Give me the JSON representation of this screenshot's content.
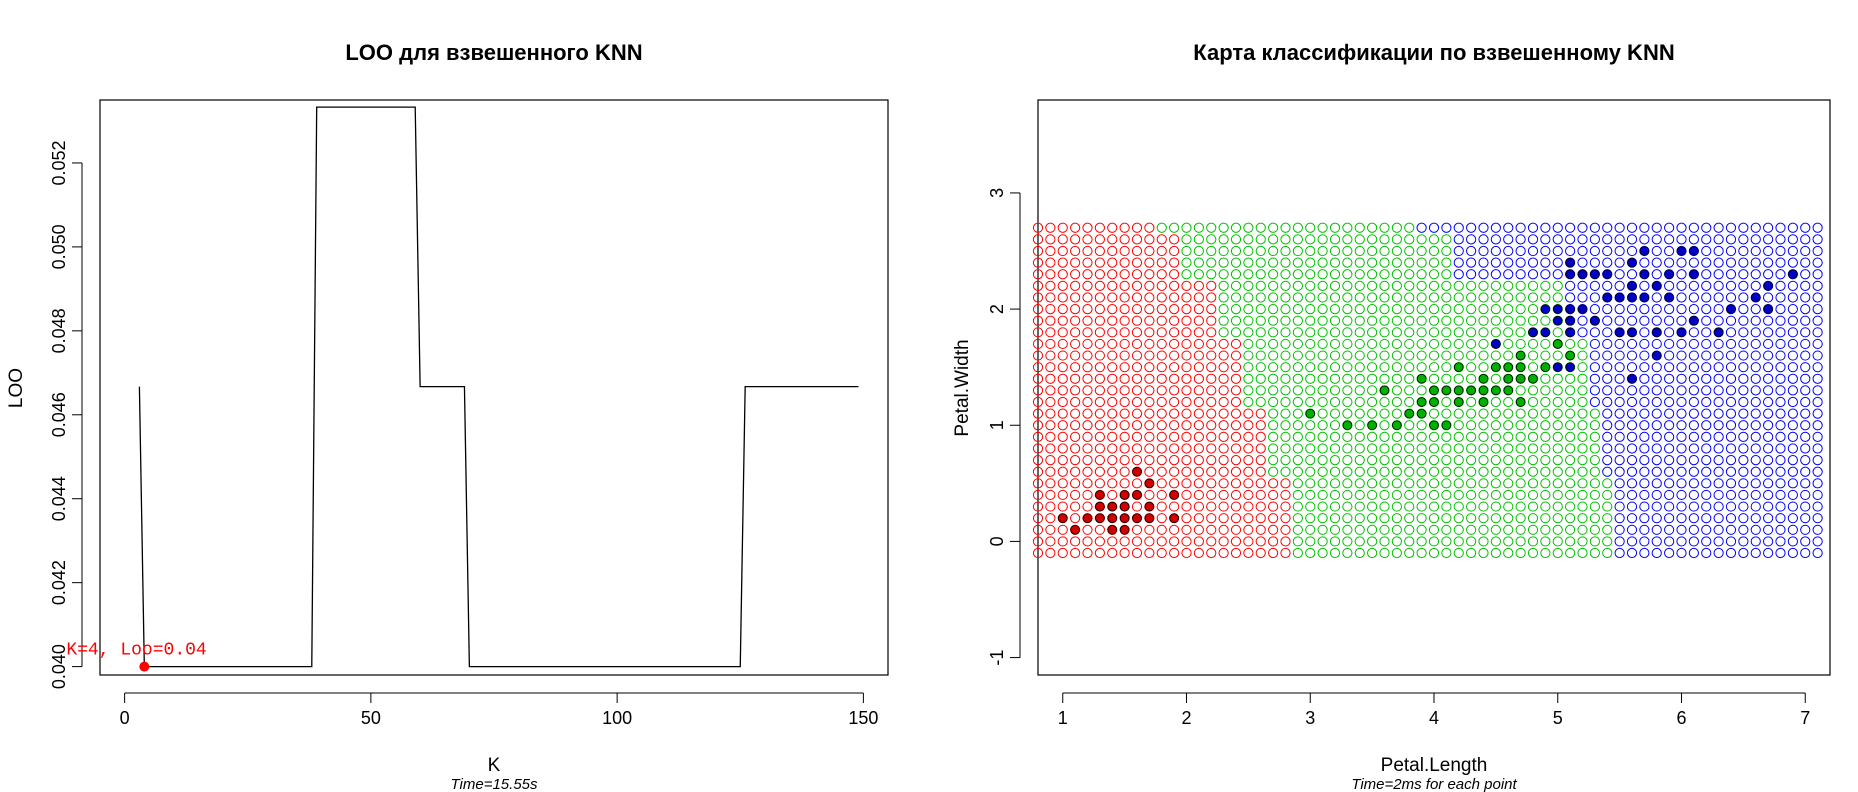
{
  "chart_data": [
    {
      "type": "line",
      "title": "LOO для взвешенного KNN",
      "xlabel": "K",
      "ylabel": "LOO",
      "subtitle": "Time=15.55s",
      "xlim": [
        -5,
        155
      ],
      "ylim": [
        0.0398,
        0.0535
      ],
      "xticks": [
        0,
        50,
        100,
        150
      ],
      "yticks": [
        0.04,
        0.042,
        0.044,
        0.046,
        0.048,
        0.05,
        0.052
      ],
      "ytick_labels": [
        "0.040",
        "0.042",
        "0.044",
        "0.046",
        "0.048",
        "0.050",
        "0.052"
      ],
      "grid": false,
      "series": [
        {
          "color": "#000000",
          "x": [
            3,
            4,
            38,
            39,
            59,
            60,
            69,
            70,
            125,
            126,
            149
          ],
          "y": [
            0.04667,
            0.04,
            0.04,
            0.05333,
            0.05333,
            0.04667,
            0.04667,
            0.04,
            0.04,
            0.04667,
            0.04667
          ]
        }
      ],
      "highlight": {
        "x": 4,
        "y": 0.04,
        "color": "#ff0000",
        "label": "K=4, Loo=0.04"
      }
    },
    {
      "type": "scatter",
      "title": "Карта классификации по взвешенному KNN",
      "xlabel": "Petal.Length",
      "ylabel": "Petal.Width",
      "subtitle": "Time=2ms for each point",
      "xlim": [
        0.8,
        7.2
      ],
      "ylim": [
        -1.15,
        3.8
      ],
      "xticks": [
        1,
        2,
        3,
        4,
        5,
        6,
        7
      ],
      "yticks": [
        -1,
        0,
        1,
        2,
        3
      ],
      "grid": false,
      "class_colors": {
        "setosa": "#ff0000",
        "versicolor": "#00c000",
        "virginica": "#0000ff"
      },
      "map": {
        "x_range": [
          0.8,
          7.1
        ],
        "y_range": [
          -0.1,
          2.7
        ],
        "step": 0.1,
        "boundaries": [
          {
            "y": -0.1,
            "setosa_max": 2.8,
            "versicolor_max": 5.4
          },
          {
            "y": 0.6,
            "setosa_max": 2.6,
            "versicolor_max": 5.3
          },
          {
            "y": 1.2,
            "setosa_max": 2.4,
            "versicolor_max": 5.2
          },
          {
            "y": 1.8,
            "setosa_max": 2.2,
            "versicolor_max": 5.0
          },
          {
            "y": 2.3,
            "setosa_max": 1.9,
            "versicolor_max": 4.1
          },
          {
            "y": 2.7,
            "setosa_max": 1.7,
            "versicolor_max": 3.8
          }
        ]
      },
      "points": {
        "setosa": [
          [
            1.0,
            0.2
          ],
          [
            1.1,
            0.1
          ],
          [
            1.2,
            0.2
          ],
          [
            1.3,
            0.2
          ],
          [
            1.3,
            0.3
          ],
          [
            1.3,
            0.4
          ],
          [
            1.4,
            0.1
          ],
          [
            1.4,
            0.2
          ],
          [
            1.4,
            0.3
          ],
          [
            1.5,
            0.1
          ],
          [
            1.5,
            0.2
          ],
          [
            1.5,
            0.3
          ],
          [
            1.5,
            0.4
          ],
          [
            1.6,
            0.2
          ],
          [
            1.6,
            0.4
          ],
          [
            1.6,
            0.6
          ],
          [
            1.7,
            0.2
          ],
          [
            1.7,
            0.3
          ],
          [
            1.7,
            0.5
          ],
          [
            1.9,
            0.2
          ],
          [
            1.9,
            0.4
          ]
        ],
        "versicolor": [
          [
            3.0,
            1.1
          ],
          [
            3.3,
            1.0
          ],
          [
            3.5,
            1.0
          ],
          [
            3.6,
            1.3
          ],
          [
            3.7,
            1.0
          ],
          [
            3.8,
            1.1
          ],
          [
            3.9,
            1.1
          ],
          [
            3.9,
            1.2
          ],
          [
            3.9,
            1.4
          ],
          [
            4.0,
            1.0
          ],
          [
            4.0,
            1.2
          ],
          [
            4.0,
            1.3
          ],
          [
            4.1,
            1.0
          ],
          [
            4.1,
            1.3
          ],
          [
            4.2,
            1.2
          ],
          [
            4.2,
            1.3
          ],
          [
            4.2,
            1.5
          ],
          [
            4.3,
            1.3
          ],
          [
            4.4,
            1.2
          ],
          [
            4.4,
            1.3
          ],
          [
            4.4,
            1.4
          ],
          [
            4.5,
            1.3
          ],
          [
            4.5,
            1.5
          ],
          [
            4.5,
            1.7
          ],
          [
            4.6,
            1.3
          ],
          [
            4.6,
            1.4
          ],
          [
            4.6,
            1.5
          ],
          [
            4.7,
            1.2
          ],
          [
            4.7,
            1.4
          ],
          [
            4.7,
            1.5
          ],
          [
            4.7,
            1.6
          ],
          [
            4.8,
            1.4
          ],
          [
            4.8,
            1.8
          ],
          [
            4.9,
            1.5
          ],
          [
            5.0,
            1.7
          ],
          [
            5.1,
            1.6
          ]
        ],
        "virginica": [
          [
            4.5,
            1.7
          ],
          [
            4.8,
            1.8
          ],
          [
            4.9,
            1.8
          ],
          [
            4.9,
            2.0
          ],
          [
            5.0,
            1.5
          ],
          [
            5.0,
            1.9
          ],
          [
            5.0,
            2.0
          ],
          [
            5.1,
            1.5
          ],
          [
            5.1,
            1.8
          ],
          [
            5.1,
            1.9
          ],
          [
            5.1,
            2.0
          ],
          [
            5.1,
            2.3
          ],
          [
            5.1,
            2.4
          ],
          [
            5.2,
            2.0
          ],
          [
            5.2,
            2.3
          ],
          [
            5.3,
            1.9
          ],
          [
            5.3,
            2.3
          ],
          [
            5.4,
            2.1
          ],
          [
            5.4,
            2.3
          ],
          [
            5.5,
            1.8
          ],
          [
            5.5,
            2.1
          ],
          [
            5.6,
            1.4
          ],
          [
            5.6,
            1.8
          ],
          [
            5.6,
            2.1
          ],
          [
            5.6,
            2.2
          ],
          [
            5.6,
            2.4
          ],
          [
            5.7,
            2.1
          ],
          [
            5.7,
            2.3
          ],
          [
            5.7,
            2.5
          ],
          [
            5.8,
            1.6
          ],
          [
            5.8,
            1.8
          ],
          [
            5.8,
            2.2
          ],
          [
            5.9,
            2.1
          ],
          [
            5.9,
            2.3
          ],
          [
            6.0,
            1.8
          ],
          [
            6.0,
            2.5
          ],
          [
            6.1,
            1.9
          ],
          [
            6.1,
            2.3
          ],
          [
            6.1,
            2.5
          ],
          [
            6.3,
            1.8
          ],
          [
            6.4,
            2.0
          ],
          [
            6.6,
            2.1
          ],
          [
            6.7,
            2.0
          ],
          [
            6.7,
            2.2
          ],
          [
            6.9,
            2.3
          ]
        ]
      }
    }
  ]
}
